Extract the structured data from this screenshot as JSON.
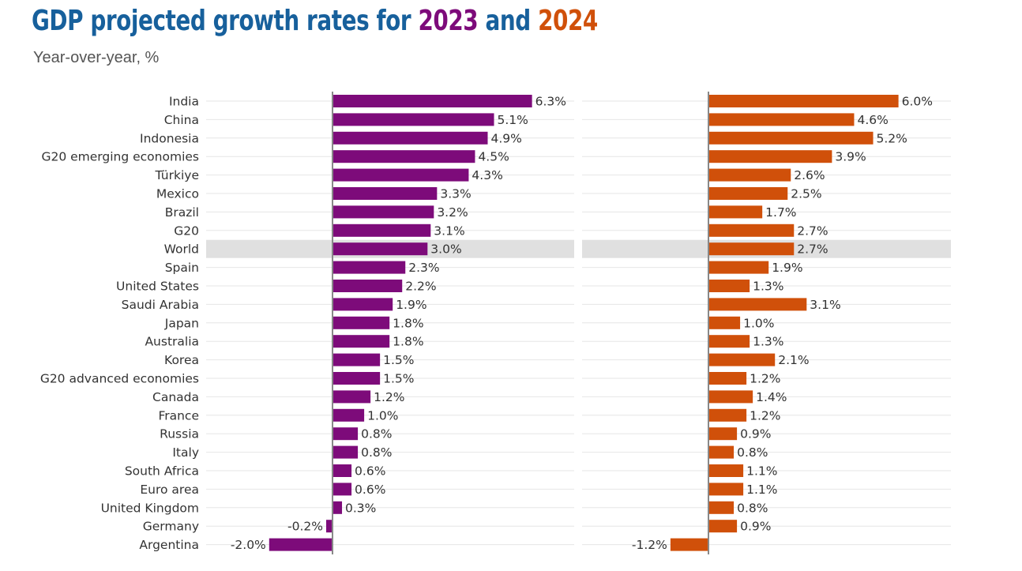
{
  "title_prefix": "GDP projected growth rates for ",
  "year1": "2023",
  "title_and": " and ",
  "year2": "2024",
  "subtitle": "Year-over-year, %",
  "colors": {
    "title": "#17609c",
    "series_2023": "#7d0b7a",
    "series_2024": "#d0500a",
    "highlight": "#e0e0e0"
  },
  "chart_data": {
    "type": "bar",
    "orientation": "horizontal",
    "title": "GDP projected growth rates for 2023 and 2024",
    "subtitle": "Year-over-year, %",
    "highlight_category": "World",
    "categories": [
      "India",
      "China",
      "Indonesia",
      "G20 emerging economies",
      "Türkiye",
      "Mexico",
      "Brazil",
      "G20",
      "World",
      "Spain",
      "United States",
      "Saudi Arabia",
      "Japan",
      "Australia",
      "Korea",
      "G20 advanced economies",
      "Canada",
      "France",
      "Russia",
      "Italy",
      "South Africa",
      "Euro area",
      "United Kingdom",
      "Germany",
      "Argentina"
    ],
    "series": [
      {
        "name": "2023",
        "values": [
          6.3,
          5.1,
          4.9,
          4.5,
          4.3,
          3.3,
          3.2,
          3.1,
          3.0,
          2.3,
          2.2,
          1.9,
          1.8,
          1.8,
          1.5,
          1.5,
          1.2,
          1.0,
          0.8,
          0.8,
          0.6,
          0.6,
          0.3,
          -0.2,
          -2.0
        ]
      },
      {
        "name": "2024",
        "values": [
          6.0,
          4.6,
          5.2,
          3.9,
          2.6,
          2.5,
          1.7,
          2.7,
          2.7,
          1.9,
          1.3,
          3.1,
          1.0,
          1.3,
          2.1,
          1.2,
          1.4,
          1.2,
          0.9,
          0.8,
          1.1,
          1.1,
          0.8,
          0.9,
          -1.2
        ]
      }
    ]
  }
}
